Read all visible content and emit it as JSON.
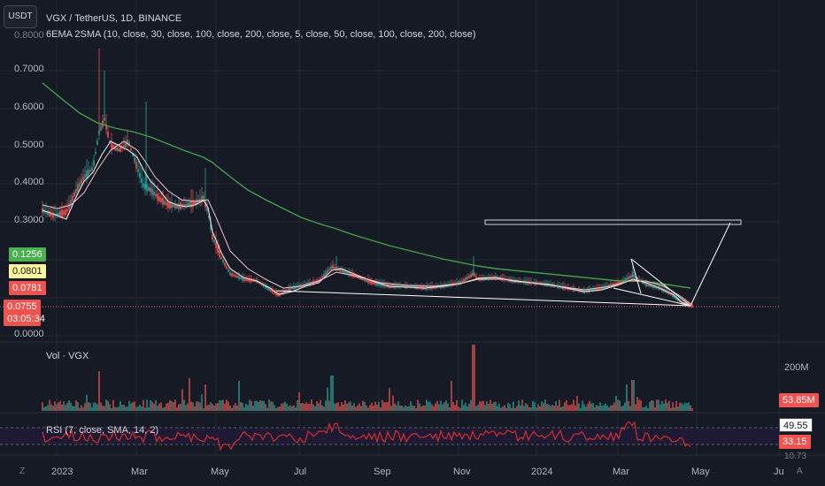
{
  "header": {
    "currency_button": "USDT",
    "title": "VGX / TetherUS, 1D, BINANCE",
    "indicators": "6EMA 2SMA (10, close, 30, close, 100, close, 200, close, 5, close, 50, close, 100, close, 200, close)"
  },
  "price_axis": [
    "0.7000",
    "0.6000",
    "0.5000",
    "0.4000",
    "0.3000",
    "0.0000"
  ],
  "price_axis_cut": "0.8000",
  "price_tags": {
    "tag1": "0.1256",
    "tag2": "0.0801",
    "tag3": "0.0781",
    "tag4": "0.0755",
    "countdown": "03:05:34"
  },
  "volume": {
    "label": "Vol · VGX",
    "axis": "200M",
    "value": "53.85M"
  },
  "rsi": {
    "label": "RSI (7, close, SMA, 14, 2)",
    "value1": "49.55",
    "value2": "33.15",
    "cut": "10.73"
  },
  "time_axis": [
    "2023",
    "Mar",
    "May",
    "Jul",
    "Sep",
    "Nov",
    "2024",
    "Mar",
    "May",
    "Ju"
  ],
  "corner": {
    "left": "Z",
    "right": "A"
  },
  "colors": {
    "background": "#161a25",
    "up": "#26a69a",
    "down": "#ef5350",
    "sma200": "#43a047",
    "ema_short": "#f8e1e1",
    "rsi_line": "#d32f2f"
  },
  "chart_data": {
    "type": "candlestick",
    "ylim": [
      0,
      0.8
    ],
    "series": [
      {
        "name": "VGX / TetherUS",
        "points": [
          [
            "2023-01",
            0.33
          ],
          [
            "2023-01-15",
            0.3
          ],
          [
            "2023-02",
            0.4
          ],
          [
            "2023-02-10",
            0.55
          ],
          [
            "2023-02-20",
            0.5
          ],
          [
            "2023-03",
            0.38
          ],
          [
            "2023-03-15",
            0.35
          ],
          [
            "2023-04",
            0.34
          ],
          [
            "2023-04-20",
            0.36
          ],
          [
            "2023-05",
            0.15
          ],
          [
            "2023-05-20",
            0.07
          ],
          [
            "2023-06",
            0.06
          ],
          [
            "2023-07",
            0.09
          ],
          [
            "2023-07-20",
            0.12
          ],
          [
            "2023-08",
            0.1
          ],
          [
            "2023-09",
            0.07
          ],
          [
            "2023-10",
            0.07
          ],
          [
            "2023-11",
            0.09
          ],
          [
            "2023-11-10",
            0.11
          ],
          [
            "2023-12",
            0.09
          ],
          [
            "2024-01",
            0.09
          ],
          [
            "2024-02",
            0.07
          ],
          [
            "2024-03",
            0.1
          ],
          [
            "2024-03-15",
            0.12
          ],
          [
            "2024-04",
            0.08
          ],
          [
            "2024-04-20",
            0.0755
          ]
        ]
      }
    ]
  }
}
